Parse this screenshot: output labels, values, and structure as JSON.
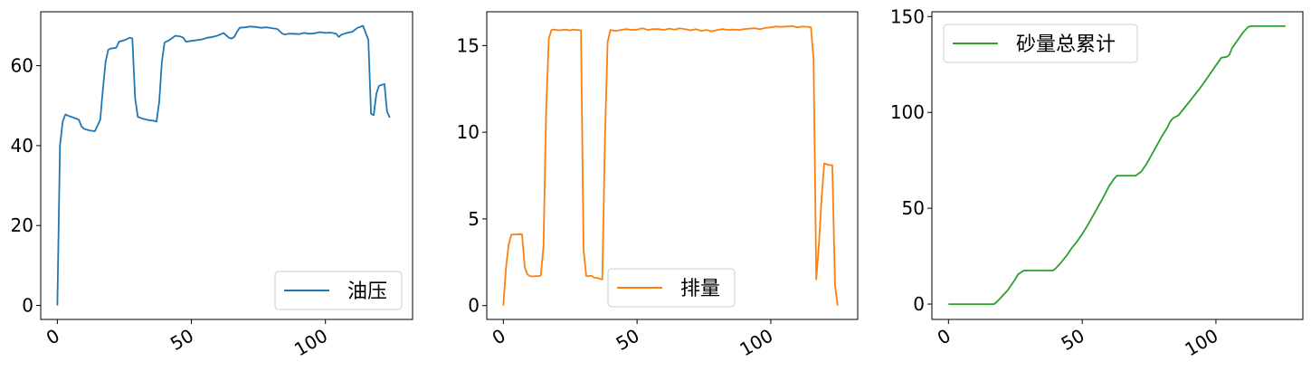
{
  "chart_data": [
    {
      "type": "line",
      "series": [
        {
          "name": "油压",
          "color": "#1f77b4",
          "x": [
            0,
            1,
            2,
            3,
            4,
            6,
            8,
            9,
            10,
            11,
            12,
            13,
            14,
            15,
            16,
            17,
            18,
            19,
            20,
            22,
            23,
            25,
            27,
            28,
            29,
            30,
            32,
            34,
            36,
            37,
            38,
            39,
            40,
            42,
            44,
            46,
            47,
            48,
            50,
            52,
            54,
            56,
            58,
            60,
            62,
            64,
            65,
            66,
            67,
            68,
            70,
            72,
            74,
            76,
            78,
            80,
            82,
            84,
            85,
            86,
            88,
            90,
            92,
            94,
            96,
            98,
            100,
            102,
            104,
            105,
            106,
            108,
            110,
            112,
            114,
            116,
            117,
            118,
            119,
            120,
            121,
            122,
            123,
            124,
            125,
            126
          ],
          "y": [
            0,
            40,
            46,
            47.8,
            47.5,
            47,
            46.5,
            44.8,
            44.2,
            44,
            43.8,
            43.7,
            43.6,
            45,
            46.5,
            54,
            61,
            64,
            64.3,
            64.5,
            66,
            66.4,
            67,
            66.8,
            52,
            47.2,
            46.7,
            46.4,
            46.2,
            46,
            51,
            61,
            65.8,
            66.5,
            67.5,
            67.3,
            67,
            66,
            66.2,
            66.4,
            66.6,
            67,
            67.2,
            67.6,
            68.2,
            67,
            66.8,
            67.2,
            68.5,
            69.5,
            69.6,
            69.8,
            69.7,
            69.5,
            69.6,
            69.4,
            69.2,
            68,
            67.8,
            68,
            68,
            67.9,
            68.2,
            68,
            68.1,
            68.4,
            68.2,
            68.3,
            68,
            67.2,
            67.8,
            68.2,
            68.5,
            69.5,
            70,
            66.5,
            48,
            47.6,
            53,
            55,
            55.2,
            55.4,
            48.5,
            47,
            null,
            null
          ]
        }
      ],
      "ylim": [
        -3.5,
        73.5
      ],
      "xlim": [
        -6.2,
        132.5
      ],
      "yticks": [
        0,
        20,
        40,
        60
      ],
      "xticks": [
        0,
        50,
        100
      ],
      "legend": "lower-right"
    },
    {
      "type": "line",
      "series": [
        {
          "name": "排量",
          "color": "#ff7f0e",
          "x": [
            0,
            1,
            2,
            3,
            4,
            5,
            6,
            7,
            8,
            9,
            10,
            11,
            12,
            13,
            14,
            15,
            16,
            17,
            18,
            19,
            20,
            21,
            22,
            23,
            24,
            25,
            26,
            27,
            28,
            29,
            30,
            31,
            32,
            33,
            34,
            35,
            36,
            37,
            38,
            39,
            40,
            42,
            44,
            46,
            48,
            50,
            52,
            54,
            56,
            58,
            60,
            62,
            64,
            66,
            68,
            70,
            72,
            74,
            76,
            78,
            80,
            82,
            84,
            86,
            88,
            90,
            92,
            94,
            96,
            98,
            100,
            102,
            104,
            106,
            108,
            110,
            112,
            114,
            115,
            116,
            117,
            118,
            119,
            120,
            121,
            122,
            123,
            124,
            125
          ],
          "y": [
            0,
            2.2,
            3.5,
            4.1,
            4.1,
            4.1,
            4.12,
            4.1,
            2.2,
            1.8,
            1.7,
            1.68,
            1.7,
            1.7,
            1.72,
            3.4,
            11.2,
            15.4,
            15.9,
            15.92,
            15.9,
            15.88,
            15.9,
            15.92,
            15.9,
            15.88,
            15.92,
            15.9,
            15.9,
            15.88,
            3.2,
            1.7,
            1.7,
            1.72,
            1.6,
            1.6,
            1.55,
            1.5,
            9.8,
            15.2,
            15.9,
            15.85,
            15.9,
            15.95,
            15.9,
            15.92,
            16,
            15.9,
            15.95,
            15.95,
            15.9,
            15.98,
            15.92,
            16,
            15.95,
            15.88,
            15.95,
            15.85,
            15.9,
            15.82,
            15.9,
            15.95,
            15.9,
            15.92,
            15.9,
            15.95,
            15.98,
            16,
            15.95,
            16.02,
            16.05,
            16.1,
            16.08,
            16.1,
            16.12,
            16.05,
            16.1,
            16.08,
            16.05,
            14.2,
            1.5,
            3.5,
            6.2,
            8.2,
            8.15,
            8.1,
            8.1,
            1.2,
            0
          ]
        }
      ],
      "ylim": [
        -0.8,
        16.95
      ],
      "xlim": [
        -6.2,
        132.5
      ],
      "yticks": [
        0,
        5,
        10,
        15
      ],
      "xticks": [
        0,
        50,
        100
      ],
      "legend": "lower-center"
    },
    {
      "type": "line",
      "series": [
        {
          "name": "砂量总累计",
          "color": "#2ca02c",
          "x": [
            0,
            5,
            10,
            15,
            17,
            18,
            19,
            20,
            21,
            22,
            23,
            24,
            25,
            26,
            28,
            30,
            32,
            34,
            36,
            38,
            39,
            40,
            42,
            44,
            46,
            48,
            50,
            52,
            54,
            56,
            58,
            60,
            62,
            63,
            64,
            66,
            68,
            70,
            72,
            74,
            76,
            78,
            80,
            82,
            83,
            84,
            86,
            88,
            90,
            92,
            94,
            96,
            98,
            100,
            102,
            104,
            105,
            106,
            108,
            110,
            112,
            113,
            114,
            116,
            118,
            120,
            122,
            124,
            126
          ],
          "y": [
            0,
            0,
            0,
            0,
            0,
            1,
            2.5,
            4,
            5.5,
            7,
            9,
            11,
            13,
            15.5,
            17.4,
            17.5,
            17.5,
            17.5,
            17.5,
            17.5,
            17.5,
            18.5,
            21.5,
            25,
            29,
            32.5,
            36.5,
            41,
            46,
            51,
            56,
            61.5,
            65.5,
            67,
            67,
            67,
            67,
            67,
            69,
            73,
            78,
            83,
            88,
            92.5,
            95.5,
            97,
            98.5,
            102,
            105.5,
            109,
            112.5,
            116.5,
            120.5,
            124.5,
            128.5,
            129,
            130,
            133.5,
            137.5,
            141.5,
            144.5,
            145,
            145,
            145,
            145,
            145,
            145,
            145,
            145
          ]
        }
      ],
      "ylim": [
        -8,
        152.5
      ],
      "xlim": [
        -6.2,
        132.5
      ],
      "yticks": [
        0,
        50,
        100,
        150
      ],
      "xticks": [
        0,
        50,
        100
      ],
      "legend": "upper-left"
    }
  ]
}
